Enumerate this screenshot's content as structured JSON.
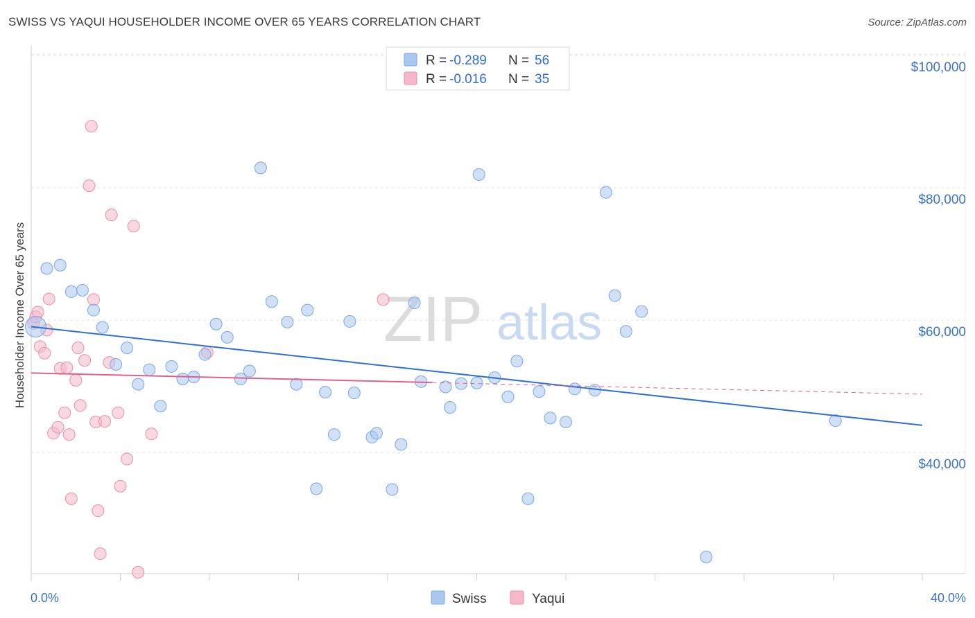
{
  "title": "SWISS VS YAQUI HOUSEHOLDER INCOME OVER 65 YEARS CORRELATION CHART",
  "source": "Source: ZipAtlas.com",
  "watermark": {
    "part1": "ZIP",
    "part2": "atlas"
  },
  "legend_box": {
    "rows": [
      {
        "r_label": "R =",
        "r_value": "-0.289",
        "n_label": "N =",
        "n_value": "56",
        "color": "#a9c8f0"
      },
      {
        "r_label": "R =",
        "r_value": "-0.016",
        "n_label": "N =",
        "n_value": "35",
        "color": "#f5b8cb"
      }
    ]
  },
  "bottom_legend": [
    {
      "label": "Swiss",
      "color": "#a9c8f0"
    },
    {
      "label": "Yaqui",
      "color": "#f5b8cb"
    }
  ],
  "colors": {
    "swiss_fill": "#a9c8f0",
    "swiss_stroke": "#7aa6e0",
    "swiss_line": "#2f6fd0",
    "yaqui_fill": "#f5b8cb",
    "yaqui_stroke": "#e890ab",
    "yaqui_line": "#e0608c",
    "tick_label": "#3a72c8",
    "value_blue": "#2f6fd0"
  },
  "chart_data": {
    "type": "scatter",
    "title": "SWISS VS YAQUI HOUSEHOLDER INCOME OVER 65 YEARS CORRELATION CHART",
    "xlabel": "",
    "ylabel": "Householder Income Over 65 years",
    "xlim": [
      0,
      40
    ],
    "ylim": [
      22000,
      103000
    ],
    "x_tick_labels": [
      {
        "value": 0,
        "label": "0.0%"
      },
      {
        "value": 40,
        "label": "40.0%"
      }
    ],
    "y_ticks": [
      {
        "value": 40000,
        "label": "$40,000"
      },
      {
        "value": 60000,
        "label": "$60,000"
      },
      {
        "value": 80000,
        "label": "$80,000"
      },
      {
        "value": 100000,
        "label": "$100,000"
      }
    ],
    "grid": true,
    "legend": "top-center",
    "series": [
      {
        "name": "Swiss",
        "r": -0.289,
        "n": 56,
        "trend": {
          "x0": 0,
          "y0": 59000,
          "x1": 40,
          "y1": 44100
        },
        "points": [
          [
            0.2,
            59000
          ],
          [
            0.7,
            67800
          ],
          [
            1.3,
            68300
          ],
          [
            1.8,
            64300
          ],
          [
            2.3,
            64500
          ],
          [
            2.8,
            61500
          ],
          [
            3.2,
            58900
          ],
          [
            3.8,
            53300
          ],
          [
            4.3,
            55800
          ],
          [
            4.8,
            50300
          ],
          [
            5.3,
            52500
          ],
          [
            5.8,
            47000
          ],
          [
            6.3,
            53000
          ],
          [
            6.8,
            51100
          ],
          [
            7.3,
            51400
          ],
          [
            7.8,
            54800
          ],
          [
            8.3,
            59400
          ],
          [
            8.8,
            57400
          ],
          [
            9.4,
            51100
          ],
          [
            9.8,
            52300
          ],
          [
            10.3,
            83000
          ],
          [
            10.8,
            62800
          ],
          [
            11.5,
            59700
          ],
          [
            11.9,
            50300
          ],
          [
            12.4,
            61500
          ],
          [
            12.8,
            34500
          ],
          [
            13.2,
            49100
          ],
          [
            13.6,
            42700
          ],
          [
            14.3,
            59800
          ],
          [
            14.5,
            49000
          ],
          [
            15.3,
            42300
          ],
          [
            15.5,
            42900
          ],
          [
            16.2,
            34400
          ],
          [
            16.6,
            41200
          ],
          [
            17.2,
            62600
          ],
          [
            17.5,
            50700
          ],
          [
            18.6,
            49900
          ],
          [
            18.8,
            46800
          ],
          [
            19.3,
            50400
          ],
          [
            20.0,
            50500
          ],
          [
            20.1,
            82000
          ],
          [
            20.8,
            51300
          ],
          [
            21.4,
            48400
          ],
          [
            21.8,
            53800
          ],
          [
            22.3,
            33000
          ],
          [
            22.8,
            49200
          ],
          [
            23.3,
            45200
          ],
          [
            24.0,
            44600
          ],
          [
            24.4,
            49600
          ],
          [
            25.3,
            49400
          ],
          [
            25.8,
            79300
          ],
          [
            26.2,
            63700
          ],
          [
            26.7,
            58300
          ],
          [
            27.4,
            61300
          ],
          [
            30.3,
            24200
          ],
          [
            36.1,
            44800
          ]
        ]
      },
      {
        "name": "Yaqui",
        "r": -0.016,
        "n": 35,
        "trend": {
          "x0": 0,
          "y0": 52000,
          "x1": 40,
          "y1": 48800,
          "solid_until_x": 18
        },
        "points": [
          [
            0.1,
            59500
          ],
          [
            0.2,
            60500
          ],
          [
            0.3,
            61200
          ],
          [
            0.4,
            56000
          ],
          [
            0.6,
            55000
          ],
          [
            0.7,
            58500
          ],
          [
            0.8,
            63200
          ],
          [
            1.0,
            42900
          ],
          [
            1.2,
            43800
          ],
          [
            1.3,
            52700
          ],
          [
            1.5,
            46000
          ],
          [
            1.6,
            52800
          ],
          [
            1.7,
            42700
          ],
          [
            1.8,
            33000
          ],
          [
            2.0,
            50900
          ],
          [
            2.1,
            55800
          ],
          [
            2.2,
            47100
          ],
          [
            2.4,
            53900
          ],
          [
            2.6,
            80300
          ],
          [
            2.7,
            89300
          ],
          [
            2.8,
            63100
          ],
          [
            2.9,
            44600
          ],
          [
            3.0,
            31200
          ],
          [
            3.1,
            24700
          ],
          [
            3.3,
            44700
          ],
          [
            3.5,
            53600
          ],
          [
            3.6,
            75900
          ],
          [
            3.9,
            46000
          ],
          [
            4.0,
            34900
          ],
          [
            4.3,
            39000
          ],
          [
            4.6,
            74200
          ],
          [
            4.8,
            21900
          ],
          [
            5.4,
            42800
          ],
          [
            7.9,
            55100
          ],
          [
            15.8,
            63100
          ]
        ]
      }
    ]
  }
}
